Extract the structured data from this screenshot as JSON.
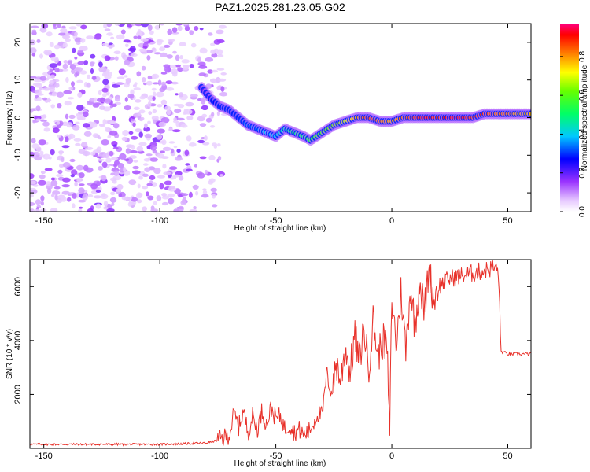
{
  "title": "PAZ1.2025.281.23.05.G02",
  "colors": {
    "snr_line": "#e8312a",
    "axes": "#000000",
    "background": "#ffffff"
  },
  "chart_data": [
    {
      "type": "heatmap",
      "name": "spectrogram",
      "xlabel": "Height of straight line (km)",
      "ylabel": "Frequency (Hz)",
      "xlim": [
        -156,
        60
      ],
      "ylim": [
        -25,
        25
      ],
      "xticks": [
        -150,
        -100,
        -50,
        0,
        50
      ],
      "yticks": [
        -20,
        -10,
        0,
        10,
        20
      ],
      "colorbar": {
        "label": "Normalized spectral amplitude",
        "range": [
          0,
          0.97
        ],
        "ticks": [
          0,
          0.2,
          0.4,
          0.6,
          0.8
        ],
        "colormap": "rainbow (white-violet-blue-cyan-green-yellow-red-magenta)"
      },
      "noise_region_x": [
        -156,
        -80
      ],
      "ridge": {
        "x": [
          -82,
          -78,
          -74,
          -70,
          -66,
          -62,
          -58,
          -54,
          -50,
          -46,
          -42,
          -38,
          -35,
          -30,
          -25,
          -20,
          -15,
          -10,
          -5,
          0,
          5,
          10,
          15,
          20,
          25,
          30,
          35,
          40,
          45,
          50,
          55,
          60
        ],
        "frequency": [
          8,
          5,
          3,
          2,
          0,
          -2,
          -3,
          -4,
          -5,
          -3,
          -4,
          -5,
          -6,
          -4,
          -2,
          -1,
          0,
          0,
          -1,
          -1,
          0,
          0,
          0,
          0,
          0,
          0,
          0,
          1,
          1,
          1,
          1,
          1
        ],
        "amplitude": [
          0.2,
          0.25,
          0.3,
          0.3,
          0.3,
          0.35,
          0.35,
          0.4,
          0.4,
          0.45,
          0.5,
          0.5,
          0.55,
          0.6,
          0.65,
          0.7,
          0.8,
          0.9,
          0.85,
          0.8,
          0.85,
          0.9,
          0.95,
          0.9,
          0.95,
          0.95,
          0.9,
          0.9,
          0.85,
          0.85,
          0.8,
          0.8
        ]
      }
    },
    {
      "type": "line",
      "name": "snr",
      "xlabel": "Height of straight line (km)",
      "ylabel": "SNR (10 * v/v)",
      "xlim": [
        -156,
        60
      ],
      "ylim": [
        0,
        7000
      ],
      "xticks": [
        -150,
        -100,
        -50,
        0,
        50
      ],
      "yticks": [
        2000,
        4000,
        6000
      ],
      "series": [
        {
          "name": "SNR",
          "x": [
            -156,
            -140,
            -120,
            -100,
            -90,
            -80,
            -75,
            -70,
            -68,
            -66,
            -64,
            -62,
            -60,
            -58,
            -56,
            -54,
            -52,
            -50,
            -48,
            -46,
            -44,
            -42,
            -40,
            -38,
            -36,
            -34,
            -32,
            -30,
            -28,
            -26,
            -24,
            -22,
            -20,
            -18,
            -16,
            -14,
            -12,
            -10,
            -8,
            -6,
            -4,
            -2,
            -1,
            0,
            2,
            4,
            6,
            8,
            10,
            12,
            14,
            16,
            18,
            20,
            25,
            30,
            35,
            40,
            44,
            46,
            47,
            50,
            55,
            60
          ],
          "y": [
            150,
            150,
            150,
            150,
            170,
            200,
            300,
            500,
            1300,
            800,
            1400,
            600,
            1200,
            700,
            1400,
            900,
            1500,
            1100,
            1200,
            700,
            900,
            600,
            700,
            500,
            600,
            900,
            1300,
            1200,
            2800,
            2000,
            3200,
            2500,
            3800,
            2800,
            4200,
            3200,
            4500,
            3000,
            4800,
            3400,
            4000,
            3700,
            300,
            5500,
            3800,
            5900,
            3600,
            6000,
            4500,
            6300,
            5000,
            6700,
            5500,
            6000,
            6300,
            6400,
            6500,
            6600,
            6700,
            6600,
            3600,
            3500,
            3500,
            3500
          ]
        }
      ]
    }
  ]
}
